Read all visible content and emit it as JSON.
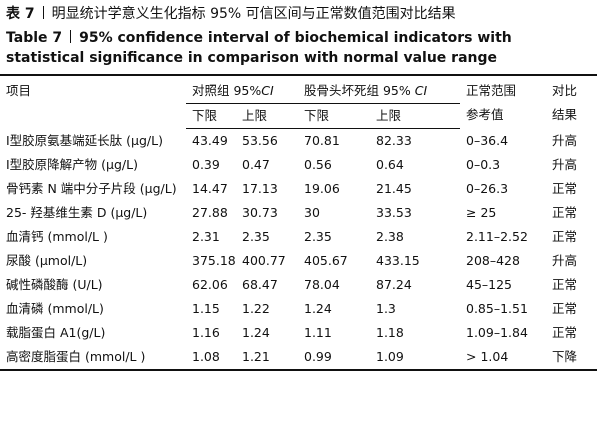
{
  "caption_zh": {
    "label": "表 7",
    "text": "明显统计学意义生化指标 95% 可信区间与正常数值范围对比结果"
  },
  "caption_en": {
    "label": "Table 7",
    "text": "95% confidence interval of biochemical indicators with statistical significance in comparison with normal value range"
  },
  "table": {
    "header": {
      "item": "项目",
      "control": {
        "text": "对照组 95%",
        "ci": "CI"
      },
      "onfh": {
        "text": "股骨头坏死组 95% ",
        "ci": "CI"
      },
      "range": [
        "正常范围",
        "参考值"
      ],
      "result": [
        "对比",
        "结果"
      ],
      "sub": [
        "下限",
        "上限",
        "下限",
        "上限"
      ]
    },
    "rows": [
      [
        "Ⅰ型胶原氨基端延长肽 (μg/L)",
        "43.49",
        "53.56",
        "70.81",
        "82.33",
        "0–36.4",
        "升高"
      ],
      [
        "Ⅰ型胶原降解产物 (μg/L)",
        "0.39",
        "0.47",
        "0.56",
        "0.64",
        "0–0.3",
        "升高"
      ],
      [
        "骨钙素 N 端中分子片段 (μg/L)",
        "14.47",
        "17.13",
        "19.06",
        "21.45",
        "0–26.3",
        "正常"
      ],
      [
        "25- 羟基维生素 D (μg/L)",
        "27.88",
        "30.73",
        "30",
        "33.53",
        "≥ 25",
        "正常"
      ],
      [
        "血清钙 (mmol/L )",
        "2.31",
        "2.35",
        "2.35",
        "2.38",
        "2.11–2.52",
        "正常"
      ],
      [
        "尿酸 (μmol/L)",
        "375.18",
        "400.77",
        "405.67",
        "433.15",
        "208–428",
        "升高"
      ],
      [
        "碱性磷酸酶 (U/L)",
        "62.06",
        "68.47",
        "78.04",
        "87.24",
        "45–125",
        "正常"
      ],
      [
        "血清磷 (mmol/L)",
        "1.15",
        "1.22",
        "1.24",
        "1.3",
        "0.85–1.51",
        "正常"
      ],
      [
        "载脂蛋白 A1(g/L)",
        "1.16",
        "1.24",
        "1.11",
        "1.18",
        "1.09–1.84",
        "正常"
      ],
      [
        "高密度脂蛋白 (mmol/L )",
        "1.08",
        "1.21",
        "0.99",
        "1.09",
        "> 1.04",
        "下降"
      ]
    ]
  }
}
